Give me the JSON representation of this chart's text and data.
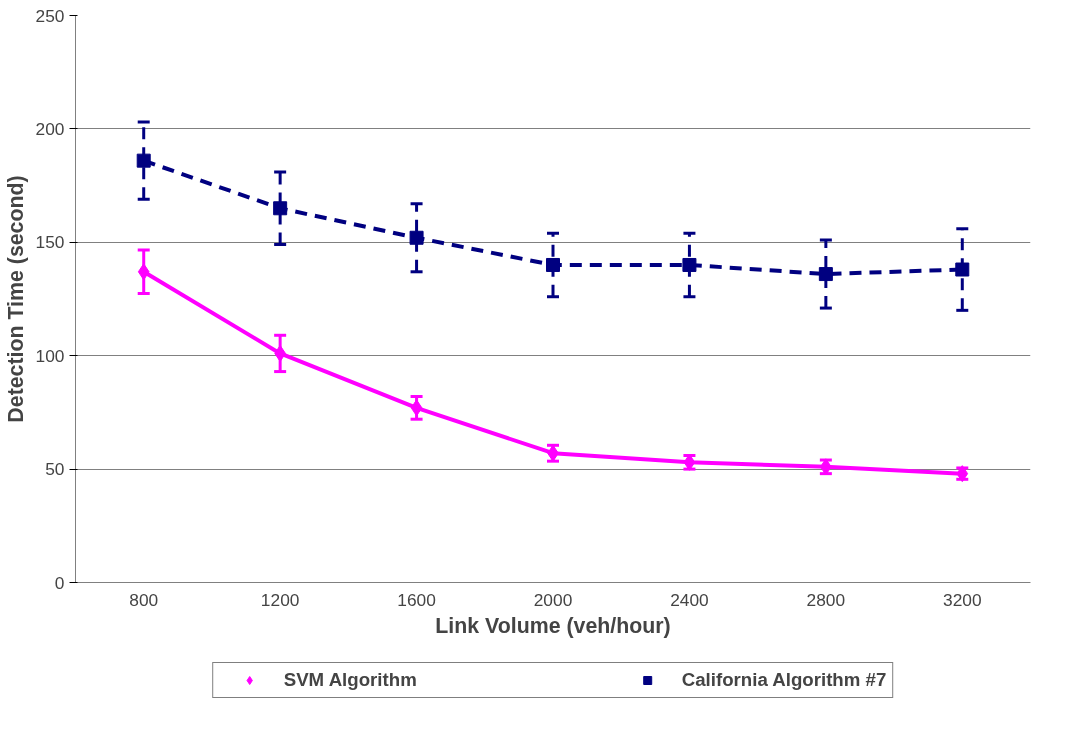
{
  "chart_data": {
    "type": "line",
    "xlabel": "Link Volume (veh/hour)",
    "ylabel": "Detection Time (second)",
    "categories": [
      "800",
      "1200",
      "1600",
      "2000",
      "2400",
      "2800",
      "3200"
    ],
    "ylim": [
      0,
      250
    ],
    "yticks": [
      0,
      50,
      100,
      150,
      200,
      250
    ],
    "grid": "y",
    "legend": "bottom",
    "series": [
      {
        "name": "SVM Algorithm",
        "color": "#ff00ff",
        "marker": "diamond",
        "line_style": "solid",
        "values": [
          137,
          101,
          77,
          57,
          53,
          51,
          48
        ],
        "errors": [
          9.6,
          8,
          5,
          3.5,
          3,
          3,
          2.5
        ]
      },
      {
        "name": "California Algorithm #7",
        "color": "#000080",
        "marker": "square",
        "line_style": "dashed",
        "values": [
          186,
          165,
          152,
          140,
          140,
          136,
          138
        ],
        "errors": [
          17,
          16,
          15,
          14,
          14,
          15,
          18
        ]
      }
    ]
  }
}
